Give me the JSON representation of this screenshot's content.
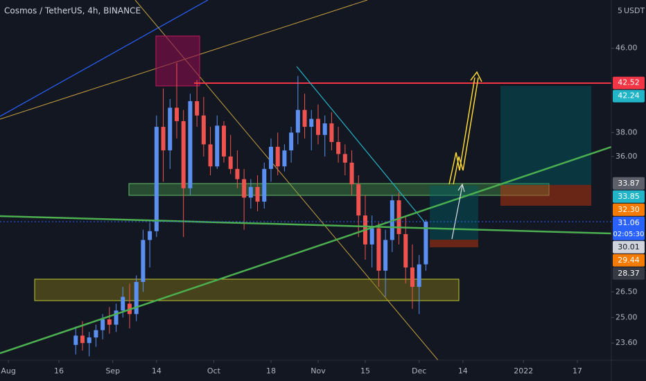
{
  "chart_data": {
    "type": "candlestick",
    "title": "Cosmos / TetherUS, 4h, BINANCE",
    "unit_top": "5",
    "currency": "USDT",
    "log_scale": true,
    "ylim": [
      22.7,
      51.3
    ],
    "yticks": [
      {
        "value": 46,
        "label": "46.00"
      },
      {
        "value": 38,
        "label": "38.00"
      },
      {
        "value": 36,
        "label": "36.00"
      },
      {
        "value": 26.5,
        "label": "26.50"
      },
      {
        "value": 25,
        "label": "25.00"
      },
      {
        "value": 23.6,
        "label": "23.60"
      }
    ],
    "xlim": [
      -2.5,
      179.1
    ],
    "xticks": [
      {
        "value": 0,
        "label": "Aug"
      },
      {
        "value": 15,
        "label": "16"
      },
      {
        "value": 31,
        "label": "Sep"
      },
      {
        "value": 44,
        "label": "14"
      },
      {
        "value": 61,
        "label": "Oct"
      },
      {
        "value": 78,
        "label": "18"
      },
      {
        "value": 92,
        "label": "Nov"
      },
      {
        "value": 106,
        "label": "15"
      },
      {
        "value": 122,
        "label": "Dec"
      },
      {
        "value": 135,
        "label": "14"
      },
      {
        "value": 153,
        "label": "2022"
      },
      {
        "value": 169,
        "label": "17"
      }
    ],
    "up_color": "#5b8ff0",
    "down_color": "#ef5350",
    "x": [
      20,
      22,
      24,
      26,
      28,
      30,
      32,
      34,
      36,
      38,
      40,
      42,
      44,
      46,
      48,
      50,
      52,
      54,
      56,
      58,
      60,
      62,
      64,
      66,
      68,
      70,
      72,
      74,
      76,
      78,
      80,
      82,
      84,
      86,
      88,
      90,
      92,
      94,
      96,
      98,
      100,
      102,
      104,
      106,
      108,
      110,
      112,
      114,
      116,
      118,
      120,
      122,
      124
    ],
    "open": [
      23.5,
      24.0,
      23.6,
      23.9,
      24.3,
      24.9,
      24.6,
      25.4,
      25.8,
      25.2,
      27.1,
      29.8,
      30.4,
      38.5,
      36.5,
      40.2,
      39.0,
      33.5,
      40.8,
      39.5,
      37.0,
      35.2,
      38.6,
      36.0,
      35.0,
      34.2,
      32.8,
      33.6,
      32.5,
      35.0,
      36.8,
      35.2,
      36.5,
      38.0,
      40.0,
      38.5,
      39.2,
      37.8,
      38.8,
      37.2,
      36.2,
      35.5,
      33.8,
      31.5,
      29.5,
      30.6,
      27.8,
      29.8,
      32.6,
      30.2,
      28.0,
      26.8,
      28.2
    ],
    "high": [
      24.5,
      24.8,
      24.2,
      24.6,
      25.2,
      25.6,
      25.8,
      26.8,
      27.0,
      27.5,
      30.5,
      31.0,
      39.5,
      42.0,
      41.0,
      44.5,
      40.0,
      41.5,
      42.8,
      41.2,
      38.5,
      39.5,
      39.0,
      37.8,
      36.5,
      35.0,
      34.2,
      34.5,
      35.5,
      37.5,
      38.0,
      37.0,
      38.5,
      43.2,
      41.5,
      40.0,
      40.5,
      39.5,
      39.8,
      38.5,
      37.0,
      36.5,
      34.5,
      33.0,
      31.5,
      31.0,
      30.5,
      33.0,
      33.2,
      31.5,
      29.5,
      28.8,
      31.2
    ],
    "low": [
      23.0,
      23.2,
      22.9,
      23.4,
      23.8,
      24.1,
      24.2,
      25.0,
      24.4,
      24.8,
      26.5,
      28.0,
      30.0,
      34.0,
      35.0,
      37.5,
      30.0,
      33.0,
      38.5,
      36.0,
      34.5,
      35.0,
      35.5,
      34.6,
      33.5,
      30.5,
      32.0,
      31.8,
      32.0,
      34.0,
      34.5,
      34.8,
      35.5,
      37.0,
      37.5,
      36.5,
      37.0,
      36.0,
      36.5,
      35.5,
      34.5,
      33.0,
      30.0,
      28.5,
      28.0,
      26.8,
      26.2,
      29.0,
      29.5,
      27.0,
      25.5,
      25.2,
      27.8
    ],
    "close": [
      24.0,
      23.6,
      23.9,
      24.3,
      24.9,
      24.6,
      25.4,
      26.2,
      25.2,
      27.1,
      29.8,
      30.4,
      38.5,
      36.5,
      40.2,
      39.0,
      33.5,
      40.8,
      39.5,
      37.0,
      35.2,
      38.6,
      36.0,
      35.0,
      34.2,
      32.8,
      33.6,
      32.5,
      35.0,
      36.8,
      35.2,
      36.5,
      38.0,
      40.0,
      38.5,
      39.2,
      37.8,
      38.8,
      37.2,
      36.2,
      35.5,
      33.8,
      31.5,
      29.5,
      30.6,
      27.8,
      29.8,
      32.6,
      30.2,
      28.0,
      26.8,
      28.2,
      31.06
    ],
    "price_labels": [
      {
        "value": 42.52,
        "label": "42.52",
        "color": "#f23645"
      },
      {
        "value": 42.24,
        "label": "42.24",
        "color": "#22b5c8"
      },
      {
        "value": 33.87,
        "label": "33.87",
        "color": "#5d606b"
      },
      {
        "value": 33.85,
        "label": "33.85",
        "color": "#22b5c8"
      },
      {
        "value": 32.3,
        "label": "32.30",
        "color": "#f57c00"
      },
      {
        "value": 31.06,
        "label": "31.06",
        "color": "#2962ff",
        "countdown": "02:05:30"
      },
      {
        "value": 30.01,
        "label": "30.01",
        "color": "#d1d4dc"
      },
      {
        "value": 29.44,
        "label": "29.44",
        "color": "#f57c00"
      },
      {
        "value": 28.37,
        "label": "28.37",
        "color": "#363a45"
      }
    ]
  }
}
